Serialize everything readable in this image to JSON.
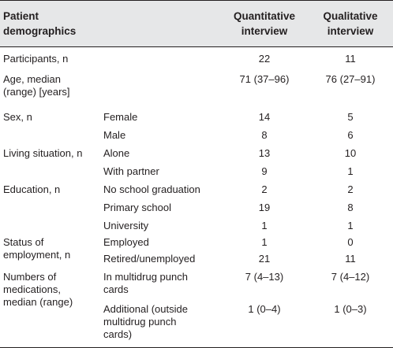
{
  "headers": {
    "col1_line1": "Patient",
    "col1_line2": "demographics",
    "col3_line1": "Quantitative",
    "col3_line2": "interview",
    "col4_line1": "Qualitative",
    "col4_line2": "interview"
  },
  "rows": [
    {
      "col1": "Participants, n",
      "col2": "",
      "quant": "22",
      "qual": "11"
    },
    {
      "col1_a": "Age, median",
      "col1_b": "(range) [years]",
      "col2": "",
      "quant": "71 (37–96)",
      "qual": "76 (27–91)"
    },
    {
      "col1": "Sex, n",
      "col2": "Female",
      "quant": "14",
      "qual": "5"
    },
    {
      "col1": "",
      "col2": "Male",
      "quant": "8",
      "qual": "6"
    },
    {
      "col1": "Living situation, n",
      "col2": "Alone",
      "quant": "13",
      "qual": "10"
    },
    {
      "col1": "",
      "col2": "With partner",
      "quant": "9",
      "qual": "1"
    },
    {
      "col1": "Education, n",
      "col2": "No school graduation",
      "quant": "2",
      "qual": "2"
    },
    {
      "col1": "",
      "col2": "Primary school",
      "quant": "19",
      "qual": "8"
    },
    {
      "col1": "",
      "col2": "University",
      "quant": "1",
      "qual": "1"
    },
    {
      "col1_a": "Status of",
      "col1_b": "employment, n",
      "col2_a": "Employed",
      "col2_b": "Retired/unemployed",
      "quant_a": "1",
      "quant_b": "21",
      "qual_a": "0",
      "qual_b": "11"
    },
    {
      "col1_a": "Numbers of",
      "col1_b": "medications,",
      "col1_c": "median (range)",
      "col2_a": "In multidrug punch",
      "col2_b": "cards",
      "quant": "7 (4–13)",
      "qual": "7 (4–12)"
    },
    {
      "col2_a": "Additional (outside",
      "col2_b": "multidrug punch",
      "col2_c": "cards)",
      "quant": "1 (0–4)",
      "qual": "1 (0–3)"
    }
  ]
}
